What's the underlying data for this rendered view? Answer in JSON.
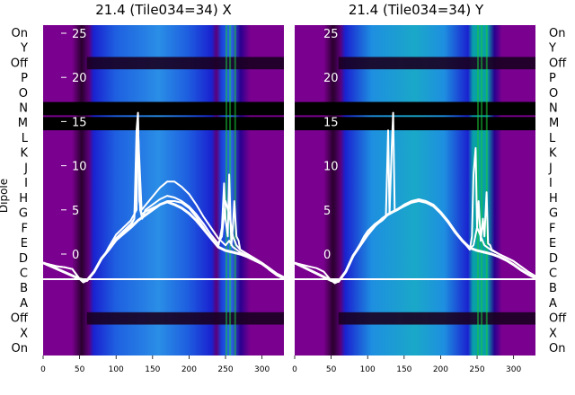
{
  "figure": {
    "ylabel_left": "Dipole",
    "colors": {
      "background": "#ffffff",
      "trace": "#ffffff",
      "black_band": "#000000",
      "purple": "#7a008f",
      "blue": "#1a3fd9",
      "cyan": "#0aa0a8",
      "green": "#18c838"
    }
  },
  "chart_data": [
    {
      "type": "heatmap",
      "title": "21.4 (Tile034=34) X",
      "xlim": [
        0,
        330
      ],
      "xticks": [
        0,
        50,
        100,
        150,
        200,
        250,
        300
      ],
      "yticks_inner": [
        0,
        5,
        10,
        15,
        20,
        25
      ],
      "row_labels": [
        "On",
        "Y",
        "Off",
        "P",
        "O",
        "N",
        "M",
        "L",
        "K",
        "J",
        "I",
        "H",
        "G",
        "F",
        "E",
        "D",
        "C",
        "B",
        "A",
        "Off",
        "X",
        "On"
      ],
      "grid": false,
      "series": [
        {
          "x": [
            0,
            10,
            20,
            30,
            40,
            50,
            55,
            60,
            65,
            70,
            75,
            80,
            85,
            90,
            95,
            100,
            110,
            120,
            125,
            128,
            130,
            132,
            135,
            140,
            150,
            160,
            170,
            180,
            190,
            200,
            210,
            220,
            230,
            240,
            245,
            248,
            250,
            253,
            255,
            258,
            260,
            262,
            265,
            268,
            270,
            280,
            290,
            300,
            310,
            320,
            330
          ],
          "y": [
            -1,
            -1.2,
            -1.4,
            -1.5,
            -1.7,
            -2.8,
            -3.2,
            -3,
            -2.5,
            -2,
            -1.3,
            -0.5,
            0,
            0.5,
            1.2,
            1.8,
            2.5,
            3.2,
            4,
            14,
            16,
            6,
            4.5,
            4.8,
            5.2,
            5.6,
            6,
            6,
            5.8,
            5.2,
            4.2,
            3,
            1.8,
            0.8,
            3,
            8,
            4,
            2,
            9,
            1,
            3,
            6,
            2,
            1.5,
            0.5,
            0,
            -0.5,
            -1,
            -1.8,
            -2.4,
            -2.8
          ]
        },
        {
          "x": [
            0,
            10,
            20,
            30,
            40,
            50,
            55,
            60,
            65,
            70,
            75,
            80,
            85,
            90,
            95,
            100,
            110,
            120,
            128,
            130,
            133,
            136,
            140,
            150,
            160,
            170,
            180,
            190,
            200,
            210,
            220,
            230,
            240,
            245,
            250,
            255,
            260,
            265,
            270,
            280,
            290,
            300,
            310,
            320,
            330
          ],
          "y": [
            -1,
            -1.2,
            -1.4,
            -1.5,
            -1.7,
            -2.8,
            -3.2,
            -3,
            -2.5,
            -2,
            -1.3,
            -0.5,
            0,
            0.8,
            1.5,
            2.2,
            3,
            3.8,
            5,
            15,
            5,
            4,
            5,
            5.6,
            6.2,
            6.6,
            6.4,
            6,
            5.4,
            4.5,
            3.4,
            2.2,
            1.2,
            2,
            6,
            4.5,
            2,
            1,
            0.5,
            0,
            -0.5,
            -1,
            -1.6,
            -2.2,
            -2.6
          ]
        },
        {
          "x": [
            0,
            50,
            60,
            70,
            80,
            90,
            100,
            110,
            120,
            125,
            130,
            135,
            140,
            150,
            160,
            170,
            180,
            190,
            200,
            210,
            220,
            230,
            240,
            250,
            255,
            260,
            270,
            280,
            290,
            300,
            310,
            320,
            330
          ],
          "y": [
            -1,
            -2.8,
            -3,
            -2,
            -0.5,
            0.5,
            1.8,
            2.6,
            3.4,
            4,
            14,
            5,
            5.5,
            6.5,
            7.5,
            8.2,
            8.2,
            7.6,
            6.8,
            5.6,
            4.2,
            3,
            1.8,
            1,
            1.5,
            0.8,
            0.2,
            -0.2,
            -0.6,
            -1,
            -1.6,
            -2.2,
            -2.6
          ]
        },
        {
          "x": [
            0,
            50,
            60,
            70,
            80,
            90,
            100,
            110,
            120,
            130,
            140,
            150,
            160,
            170,
            180,
            190,
            200,
            210,
            220,
            230,
            240,
            250,
            260,
            270,
            280,
            290,
            300,
            310,
            320,
            330
          ],
          "y": [
            -1,
            -2.8,
            -3,
            -2,
            -0.5,
            0.5,
            1.6,
            2.3,
            3,
            3.8,
            4.4,
            5,
            5.6,
            5.9,
            5.6,
            5.2,
            4.6,
            3.8,
            2.8,
            1.8,
            0.8,
            0.4,
            0.2,
            0,
            -0.3,
            -0.7,
            -1.1,
            -1.7,
            -2.3,
            -2.7
          ]
        }
      ]
    },
    {
      "type": "heatmap",
      "title": "21.4 (Tile034=34) Y",
      "xlim": [
        0,
        330
      ],
      "xticks": [
        0,
        50,
        100,
        150,
        200,
        250,
        300
      ],
      "yticks_inner": [
        0,
        5,
        10,
        15,
        20,
        25
      ],
      "row_labels": [
        "On",
        "Y",
        "Off",
        "P",
        "O",
        "N",
        "M",
        "L",
        "K",
        "J",
        "I",
        "H",
        "G",
        "F",
        "E",
        "D",
        "C",
        "B",
        "A",
        "Off",
        "X",
        "On"
      ],
      "grid": false,
      "series": [
        {
          "x": [
            0,
            10,
            20,
            30,
            40,
            50,
            55,
            60,
            65,
            70,
            75,
            80,
            85,
            90,
            95,
            100,
            110,
            120,
            130,
            133,
            135,
            137,
            140,
            150,
            160,
            170,
            180,
            190,
            200,
            210,
            220,
            230,
            240,
            243,
            245,
            248,
            250,
            252,
            255,
            258,
            260,
            263,
            265,
            268,
            270,
            280,
            290,
            300,
            310,
            320,
            330
          ],
          "y": [
            -1,
            -1.2,
            -1.4,
            -1.6,
            -2,
            -3,
            -3.3,
            -3.1,
            -2.6,
            -2,
            -1.2,
            -0.2,
            0.5,
            1.2,
            2,
            2.6,
            3.4,
            4,
            4.6,
            12,
            16,
            5,
            5,
            5.6,
            6,
            6.2,
            6,
            5.6,
            4.8,
            3.8,
            2.6,
            1.5,
            0.5,
            2,
            9,
            12,
            3,
            6,
            1.5,
            4,
            2,
            7,
            1.2,
            1,
            0.5,
            0,
            -0.4,
            -0.8,
            -1.4,
            -2,
            -2.5
          ]
        },
        {
          "x": [
            0,
            50,
            60,
            70,
            80,
            90,
            100,
            110,
            120,
            125,
            128,
            130,
            132,
            140,
            150,
            160,
            170,
            180,
            190,
            200,
            210,
            220,
            230,
            240,
            245,
            250,
            255,
            260,
            270,
            280,
            290,
            300,
            310,
            320,
            330
          ],
          "y": [
            -1,
            -3,
            -3.1,
            -2,
            -0.2,
            1,
            2.2,
            3.2,
            3.8,
            4.2,
            14,
            4.5,
            4.6,
            5,
            5.4,
            5.8,
            6,
            5.8,
            5.4,
            4.6,
            3.6,
            2.4,
            1.4,
            0.6,
            1,
            3,
            2,
            1,
            0.4,
            0,
            -0.4,
            -0.8,
            -1.4,
            -2,
            -2.5
          ]
        },
        {
          "x": [
            0,
            50,
            60,
            70,
            80,
            90,
            100,
            110,
            120,
            130,
            140,
            150,
            160,
            170,
            180,
            190,
            200,
            210,
            220,
            230,
            240,
            250,
            260,
            270,
            280,
            290,
            300,
            310,
            320,
            330
          ],
          "y": [
            -1,
            -3,
            -3.1,
            -2,
            -0.2,
            1,
            2.2,
            3.2,
            4,
            4.6,
            5,
            5.5,
            5.9,
            6.1,
            5.9,
            5.5,
            4.7,
            3.7,
            2.5,
            1.5,
            0.7,
            0.4,
            0.2,
            0,
            -0.3,
            -0.7,
            -1.2,
            -1.8,
            -2.3,
            -2.7
          ]
        }
      ]
    }
  ]
}
